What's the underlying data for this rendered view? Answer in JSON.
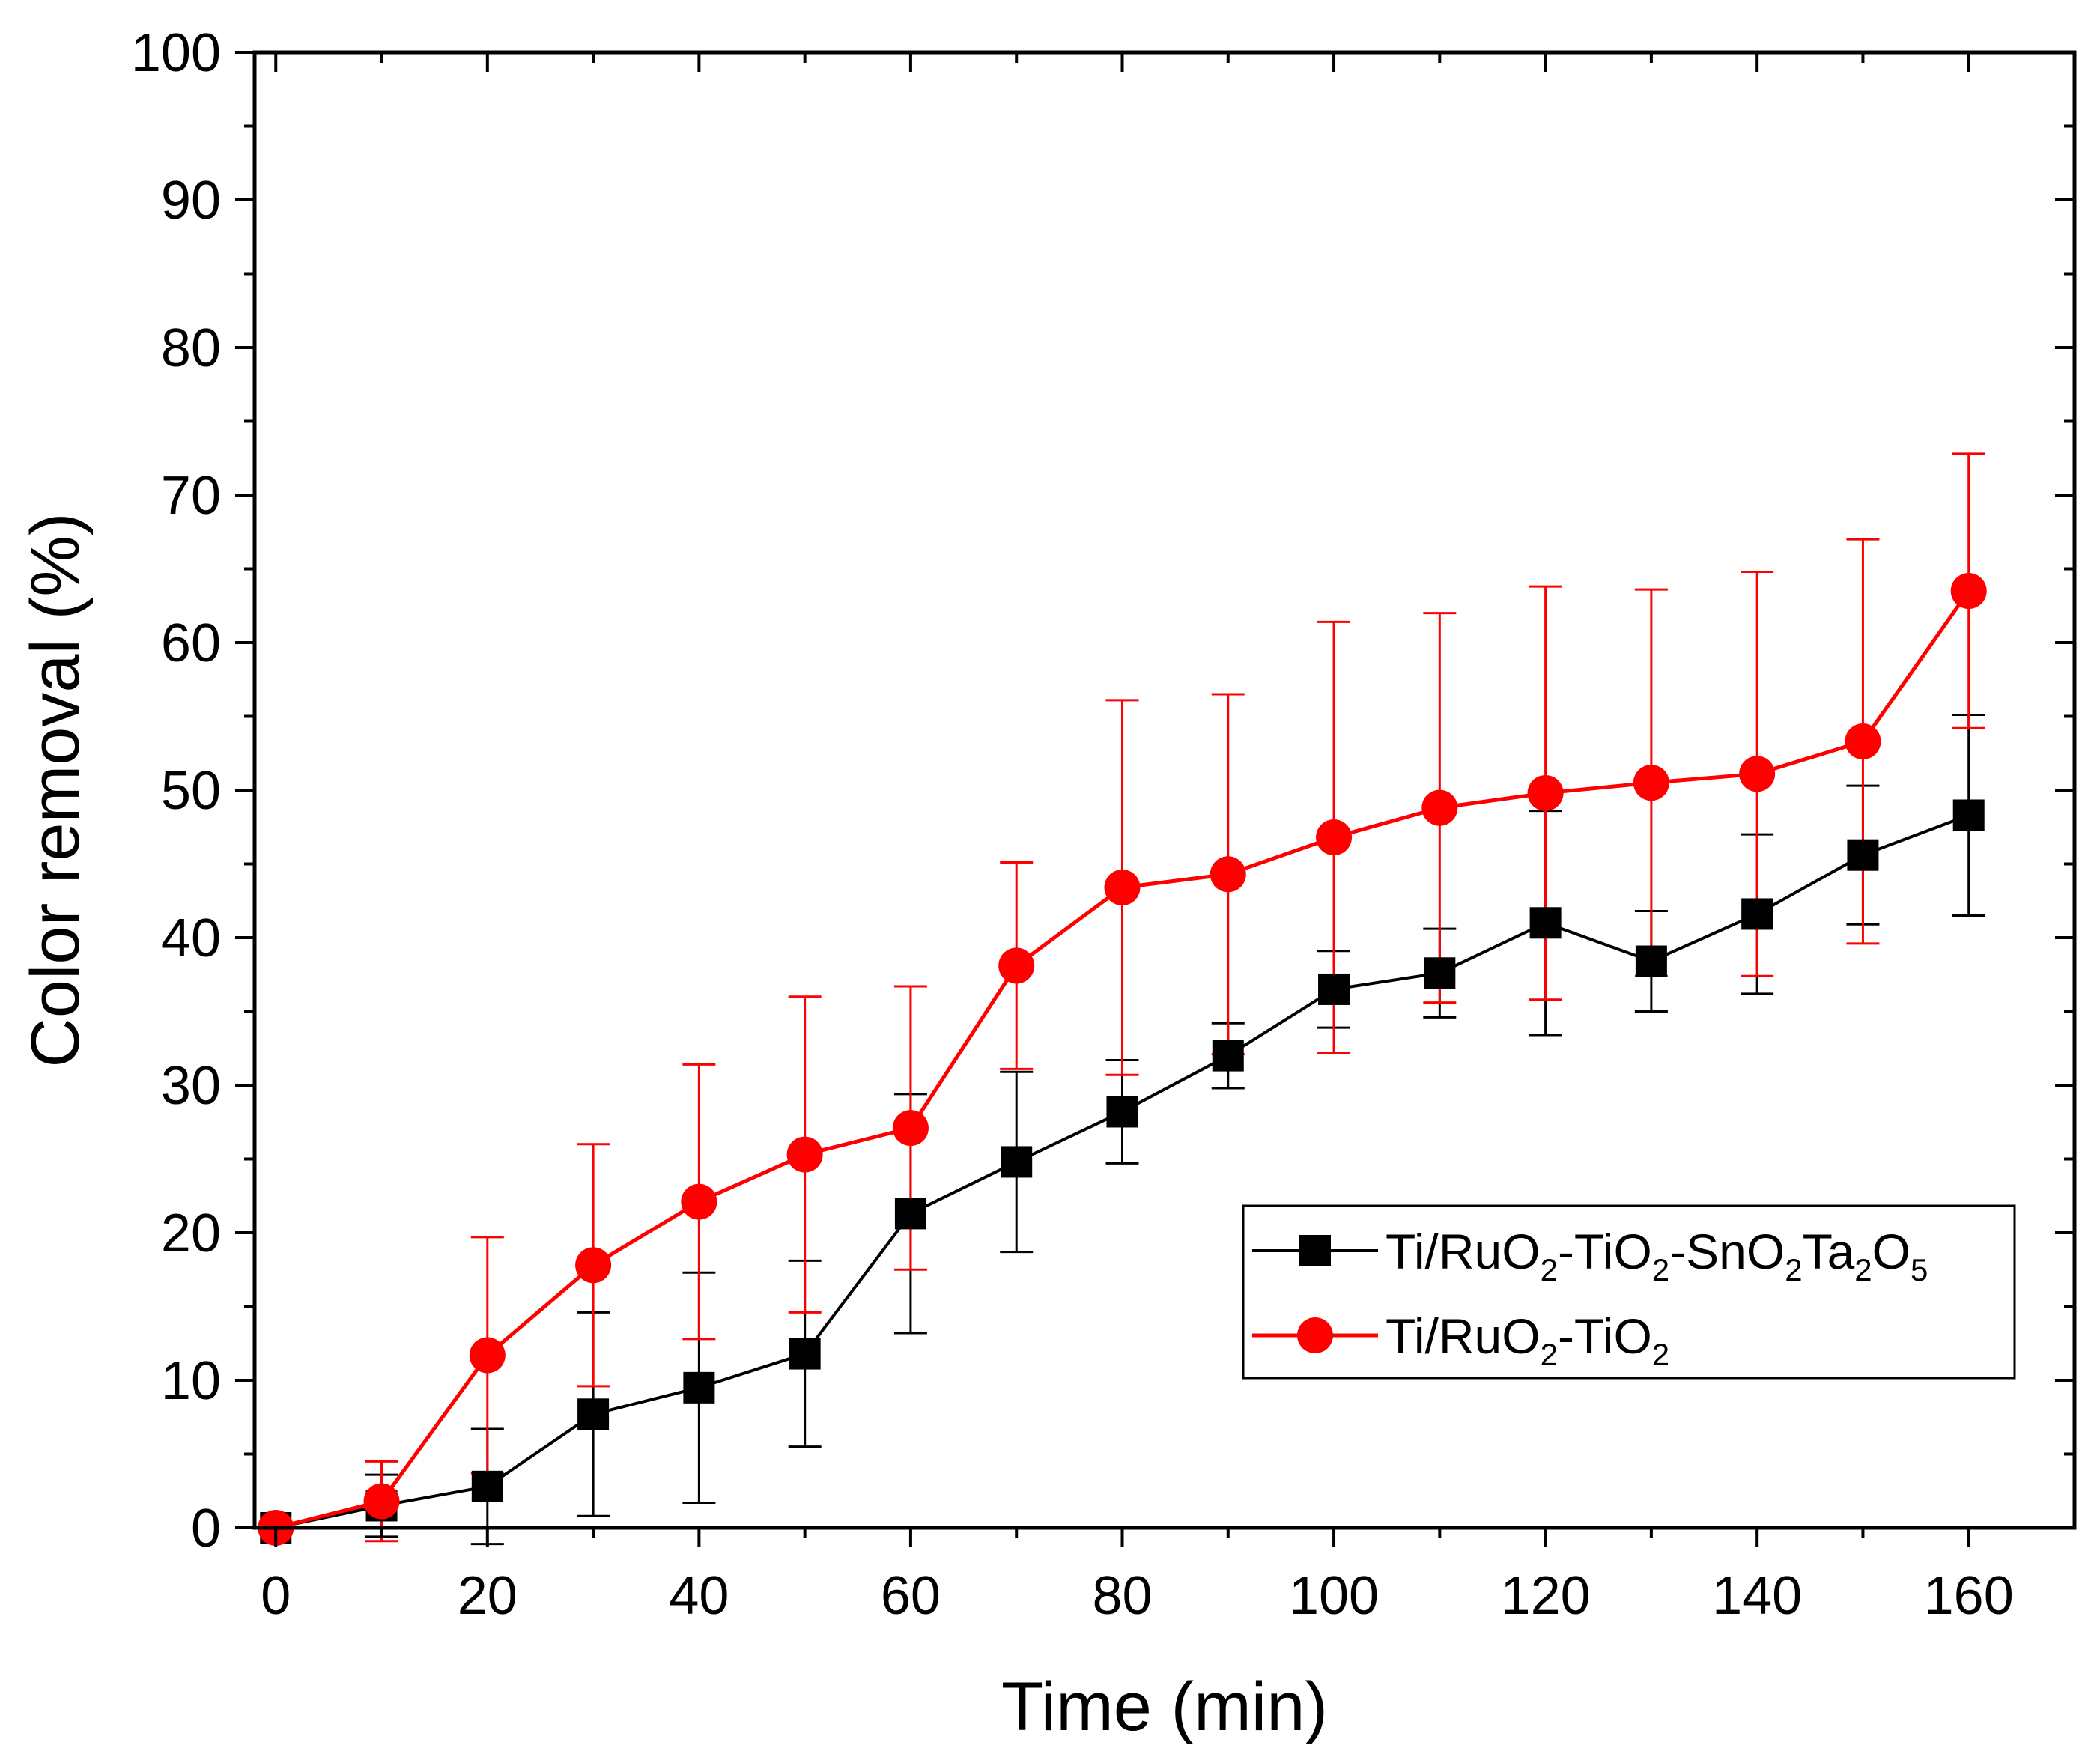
{
  "chart_data": {
    "type": "line",
    "xlabel": "Time (min)",
    "ylabel": "Color removal (%)",
    "xlim": [
      -2,
      170
    ],
    "ylim": [
      0,
      100
    ],
    "xticks": [
      0,
      20,
      40,
      60,
      80,
      100,
      120,
      140,
      160
    ],
    "yticks": [
      0,
      10,
      20,
      30,
      40,
      50,
      60,
      70,
      80,
      90,
      100
    ],
    "grid": false,
    "legend_position": "bottom-right",
    "x": [
      0,
      10,
      20,
      30,
      40,
      50,
      60,
      70,
      80,
      90,
      100,
      110,
      120,
      130,
      140,
      150,
      160
    ],
    "series": [
      {
        "name": "Ti/RuO2-TiO2-SnO2Ta2O5",
        "legend_parts": [
          {
            "t": "Ti/RuO",
            "sub": false
          },
          {
            "t": "2",
            "sub": true
          },
          {
            "t": "-TiO",
            "sub": false
          },
          {
            "t": "2",
            "sub": true
          },
          {
            "t": "-SnO",
            "sub": false
          },
          {
            "t": "2",
            "sub": true
          },
          {
            "t": "Ta",
            "sub": false
          },
          {
            "t": "2",
            "sub": true
          },
          {
            "t": "O",
            "sub": false
          },
          {
            "t": "5",
            "sub": true
          }
        ],
        "color": "#000000",
        "marker": "square",
        "values": [
          0,
          1.5,
          2.8,
          7.7,
          9.5,
          11.8,
          21.3,
          24.8,
          28.2,
          32.0,
          36.5,
          37.6,
          41.0,
          38.4,
          41.6,
          45.6,
          48.3
        ],
        "error": [
          0,
          2.1,
          3.9,
          6.9,
          7.8,
          6.3,
          8.1,
          6.1,
          3.5,
          2.2,
          2.6,
          3.0,
          7.6,
          3.4,
          5.4,
          4.7,
          6.8
        ]
      },
      {
        "name": "Ti/RuO2-TiO2",
        "legend_parts": [
          {
            "t": "Ti/RuO",
            "sub": false
          },
          {
            "t": "2",
            "sub": true
          },
          {
            "t": "-TiO",
            "sub": false
          },
          {
            "t": "2",
            "sub": true
          }
        ],
        "color": "#ff0000",
        "marker": "circle",
        "values": [
          0,
          1.8,
          11.7,
          17.8,
          22.1,
          25.3,
          27.1,
          38.1,
          43.4,
          44.3,
          46.8,
          48.8,
          49.8,
          50.5,
          51.1,
          53.3,
          63.5
        ],
        "error": [
          0,
          2.7,
          8.0,
          8.2,
          9.3,
          10.7,
          9.6,
          7.0,
          12.7,
          12.2,
          14.6,
          13.2,
          14.0,
          13.1,
          13.7,
          13.7,
          9.3
        ]
      }
    ]
  }
}
